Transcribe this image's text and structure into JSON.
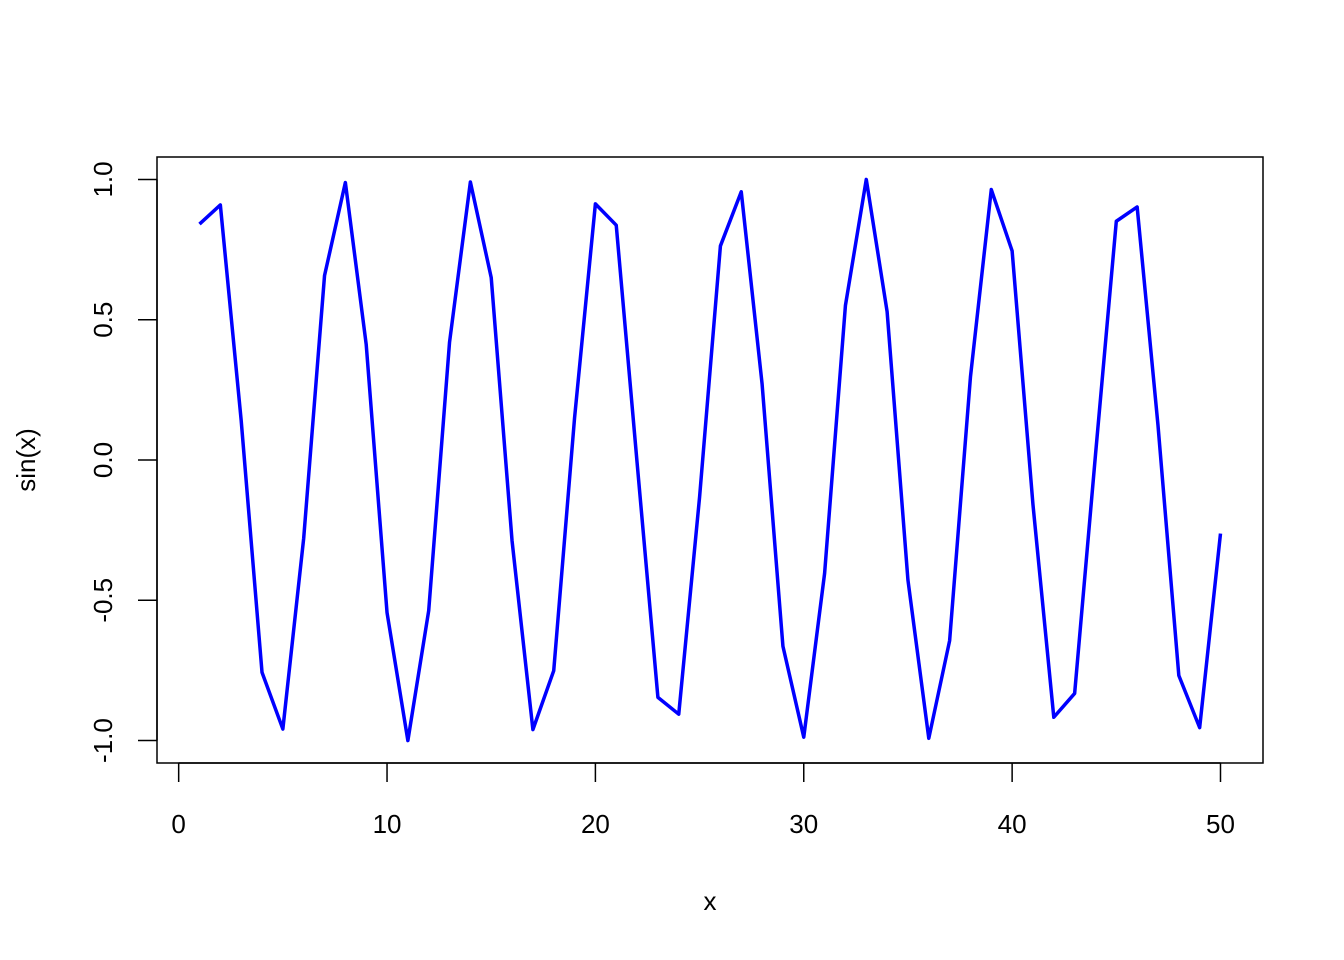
{
  "chart_data": {
    "type": "line",
    "title": "",
    "xlabel": "x",
    "ylabel": "sin(x)",
    "xlim": [
      -1.04,
      52.04
    ],
    "ylim": [
      -1.08,
      1.08
    ],
    "xticks": [
      0,
      10,
      20,
      30,
      40,
      50
    ],
    "xtick_labels": [
      "0",
      "10",
      "20",
      "30",
      "40",
      "50"
    ],
    "yticks": [
      -1.0,
      -0.5,
      0.0,
      0.5,
      1.0
    ],
    "ytick_labels": [
      "-1.0",
      "-0.5",
      "0.0",
      "0.5",
      "1.0"
    ],
    "grid": false,
    "line_color": "#0000FF",
    "x": [
      1,
      2,
      3,
      4,
      5,
      6,
      7,
      8,
      9,
      10,
      11,
      12,
      13,
      14,
      15,
      16,
      17,
      18,
      19,
      20,
      21,
      22,
      23,
      24,
      25,
      26,
      27,
      28,
      29,
      30,
      31,
      32,
      33,
      34,
      35,
      36,
      37,
      38,
      39,
      40,
      41,
      42,
      43,
      44,
      45,
      46,
      47,
      48,
      49,
      50
    ],
    "y": [
      0.841,
      0.909,
      0.141,
      -0.757,
      -0.959,
      -0.279,
      0.657,
      0.989,
      0.412,
      -0.544,
      -1.0,
      -0.537,
      0.42,
      0.991,
      0.65,
      -0.288,
      -0.961,
      -0.751,
      0.15,
      0.913,
      0.837,
      -0.009,
      -0.846,
      -0.906,
      -0.132,
      0.763,
      0.956,
      0.271,
      -0.664,
      -0.988,
      -0.404,
      0.551,
      1.0,
      0.529,
      -0.428,
      -0.992,
      -0.644,
      0.296,
      0.964,
      0.745,
      -0.159,
      -0.917,
      -0.832,
      0.018,
      0.851,
      0.902,
      0.124,
      -0.768,
      -0.954,
      -0.262
    ]
  }
}
